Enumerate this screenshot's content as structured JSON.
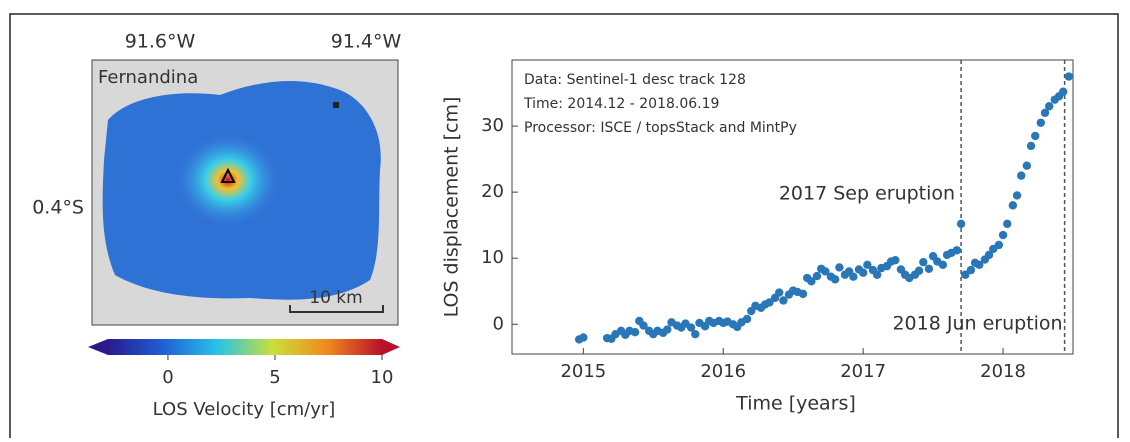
{
  "map": {
    "title": "Fernandina",
    "lon_labels": [
      "91.6°W",
      "91.4°W"
    ],
    "lat_label": "0.4°S",
    "scale_label": "10 km",
    "colorbar": {
      "label": "LOS Velocity [cm/yr]",
      "lim": [
        -2.8,
        10
      ],
      "ticks": [
        0,
        5,
        10
      ]
    }
  },
  "chart_data": {
    "type": "scatter",
    "xlabel": "Time [years]",
    "ylabel": "LOS displacement [cm]",
    "info_lines": [
      "Data: Sentinel-1 desc track 128",
      "Time: 2014.12 - 2018.06.19",
      "Processor: ISCE / topsStack and MintPy"
    ],
    "events": [
      {
        "x": 2017.7,
        "label": "2017 Sep eruption"
      },
      {
        "x": 2018.44,
        "label": "2018 Jun eruption"
      }
    ],
    "xlim": [
      2014.49,
      2018.5
    ],
    "xticks": [
      2015,
      2016,
      2017,
      2018
    ],
    "ylim": [
      -4.5,
      40
    ],
    "yticks": [
      0,
      10,
      20,
      30
    ],
    "color": "#2a77b8",
    "x": [
      2014.97,
      2015.0,
      2015.17,
      2015.2,
      2015.23,
      2015.27,
      2015.3,
      2015.33,
      2015.37,
      2015.4,
      2015.43,
      2015.47,
      2015.5,
      2015.53,
      2015.57,
      2015.6,
      2015.63,
      2015.67,
      2015.7,
      2015.73,
      2015.77,
      2015.8,
      2015.83,
      2015.87,
      2015.9,
      2015.93,
      2015.97,
      2016.0,
      2016.03,
      2016.07,
      2016.1,
      2016.13,
      2016.17,
      2016.2,
      2016.23,
      2016.27,
      2016.3,
      2016.33,
      2016.37,
      2016.4,
      2016.43,
      2016.47,
      2016.5,
      2016.53,
      2016.57,
      2016.6,
      2016.63,
      2016.67,
      2016.7,
      2016.73,
      2016.77,
      2016.8,
      2016.83,
      2016.87,
      2016.9,
      2016.93,
      2016.97,
      2017.0,
      2017.03,
      2017.07,
      2017.1,
      2017.13,
      2017.17,
      2017.2,
      2017.23,
      2017.27,
      2017.3,
      2017.33,
      2017.37,
      2017.4,
      2017.43,
      2017.47,
      2017.5,
      2017.53,
      2017.57,
      2017.6,
      2017.63,
      2017.67,
      2017.7,
      2017.73,
      2017.77,
      2017.8,
      2017.83,
      2017.87,
      2017.9,
      2017.93,
      2017.97,
      2018.0,
      2018.03,
      2018.07,
      2018.1,
      2018.13,
      2018.17,
      2018.2,
      2018.23,
      2018.27,
      2018.3,
      2018.33,
      2018.37,
      2018.4,
      2018.43,
      2018.47
    ],
    "values": [
      -2.3,
      -2.0,
      -2.1,
      -2.2,
      -1.5,
      -1.0,
      -1.6,
      -1.0,
      -1.2,
      0.5,
      -0.2,
      -1.0,
      -1.5,
      -1.0,
      -1.3,
      -0.8,
      0.3,
      -0.2,
      -0.5,
      0.1,
      -0.5,
      -1.5,
      0.2,
      -0.3,
      0.5,
      0.2,
      0.5,
      0.2,
      0.4,
      0.0,
      -0.4,
      0.3,
      0.8,
      2.0,
      2.8,
      2.5,
      3.0,
      3.3,
      4.0,
      4.8,
      3.6,
      4.5,
      5.1,
      4.9,
      4.6,
      7.0,
      6.5,
      7.3,
      8.4,
      8.0,
      7.2,
      6.8,
      8.6,
      7.5,
      8.0,
      7.2,
      8.3,
      7.8,
      9.0,
      8.2,
      7.5,
      8.5,
      8.8,
      9.5,
      9.7,
      8.3,
      7.5,
      7.0,
      7.5,
      8.1,
      9.4,
      8.4,
      10.3,
      9.5,
      9.0,
      10.5,
      10.8,
      11.2,
      15.2,
      7.5,
      8.2,
      9.3,
      9.0,
      9.8,
      10.5,
      11.4,
      12.0,
      13.5,
      15.2,
      18.0,
      19.5,
      22.5,
      24.0,
      27.0,
      28.5,
      30.5,
      32.0,
      33.0,
      34.0,
      34.5,
      35.2,
      37.5
    ]
  }
}
